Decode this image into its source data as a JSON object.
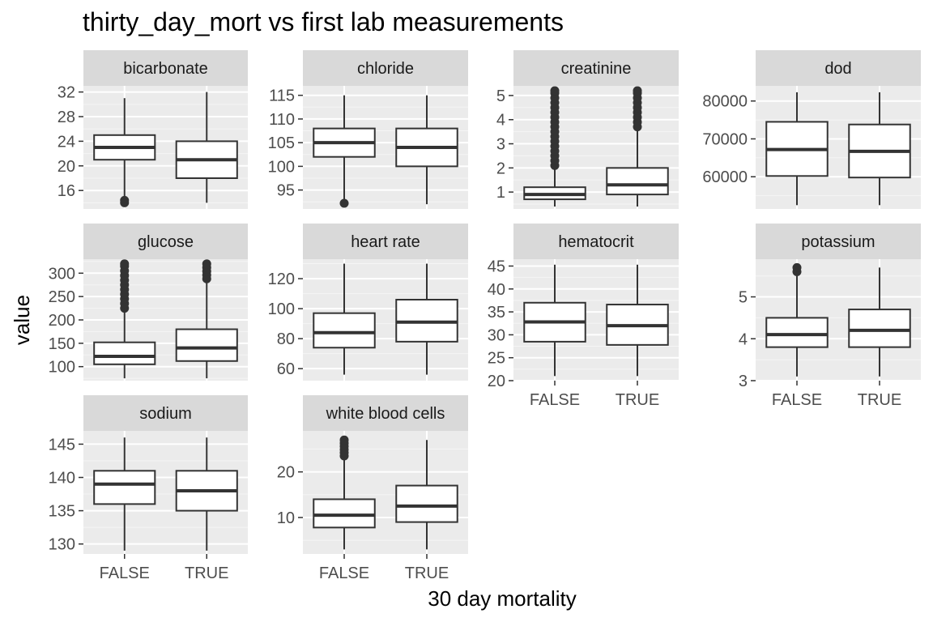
{
  "chart_data": {
    "type": "box",
    "title": "thirty_day_mort vs first lab measurements",
    "xlabel": "30 day mortality",
    "ylabel": "value",
    "categories": [
      "FALSE",
      "TRUE"
    ],
    "facets": [
      {
        "name": "bicarbonate",
        "ylim": [
          13,
          33
        ],
        "yticks": [
          16,
          20,
          24,
          28,
          32
        ],
        "boxes": [
          {
            "group": "FALSE",
            "min": 15,
            "q1": 21,
            "median": 23,
            "q3": 25,
            "max": 31,
            "outliers": [
              14,
              14.4
            ]
          },
          {
            "group": "TRUE",
            "min": 14,
            "q1": 18,
            "median": 21,
            "q3": 24,
            "max": 32,
            "outliers": []
          }
        ]
      },
      {
        "name": "chloride",
        "ylim": [
          91,
          117
        ],
        "yticks": [
          95,
          100,
          105,
          110,
          115
        ],
        "boxes": [
          {
            "group": "FALSE",
            "min": 93,
            "q1": 102,
            "median": 105,
            "q3": 108,
            "max": 115,
            "outliers": [
              92.2
            ]
          },
          {
            "group": "TRUE",
            "min": 92,
            "q1": 100,
            "median": 104,
            "q3": 108,
            "max": 115,
            "outliers": []
          }
        ]
      },
      {
        "name": "creatinine",
        "ylim": [
          0.3,
          5.4
        ],
        "yticks": [
          1,
          2,
          3,
          4,
          5
        ],
        "boxes": [
          {
            "group": "FALSE",
            "min": 0.4,
            "q1": 0.7,
            "median": 0.9,
            "q3": 1.2,
            "max": 2.0,
            "outliers": [
              2.1,
              2.3,
              2.5,
              2.7,
              2.9,
              3.1,
              3.3,
              3.5,
              3.7,
              3.9,
              4.1,
              4.3,
              4.5,
              4.7,
              4.9,
              5.1,
              5.2
            ]
          },
          {
            "group": "TRUE",
            "min": 0.4,
            "q1": 0.9,
            "median": 1.3,
            "q3": 2.0,
            "max": 3.6,
            "outliers": [
              3.7,
              3.9,
              4.1,
              4.3,
              4.5,
              4.7,
              4.9,
              5.1,
              5.2
            ]
          }
        ]
      },
      {
        "name": "dod",
        "ylim": [
          51500,
          84000
        ],
        "yticks": [
          60000,
          70000,
          80000
        ],
        "boxes": [
          {
            "group": "FALSE",
            "min": 52500,
            "q1": 60200,
            "median": 67200,
            "q3": 74500,
            "max": 82300,
            "outliers": []
          },
          {
            "group": "TRUE",
            "min": 52500,
            "q1": 59800,
            "median": 66700,
            "q3": 73800,
            "max": 82300,
            "outliers": []
          }
        ]
      },
      {
        "name": "glucose",
        "ylim": [
          70,
          330
        ],
        "yticks": [
          100,
          150,
          200,
          250,
          300
        ],
        "boxes": [
          {
            "group": "FALSE",
            "min": 75,
            "q1": 105,
            "median": 122,
            "q3": 152,
            "max": 220,
            "outliers": [
              225,
              235,
              245,
              255,
              265,
              275,
              285,
              295,
              305,
              315,
              320
            ]
          },
          {
            "group": "TRUE",
            "min": 75,
            "q1": 112,
            "median": 140,
            "q3": 180,
            "max": 283,
            "outliers": [
              288,
              296,
              304,
              312,
              320
            ]
          }
        ]
      },
      {
        "name": "heart rate",
        "ylim": [
          52,
          133
        ],
        "yticks": [
          60,
          80,
          100,
          120
        ],
        "boxes": [
          {
            "group": "FALSE",
            "min": 56,
            "q1": 74,
            "median": 84,
            "q3": 97,
            "max": 130,
            "outliers": []
          },
          {
            "group": "TRUE",
            "min": 56,
            "q1": 78,
            "median": 91,
            "q3": 106,
            "max": 130,
            "outliers": []
          }
        ]
      },
      {
        "name": "hematocrit",
        "ylim": [
          20,
          46.5
        ],
        "yticks": [
          20,
          25,
          30,
          35,
          40,
          45
        ],
        "boxes": [
          {
            "group": "FALSE",
            "min": 21,
            "q1": 28.5,
            "median": 32.8,
            "q3": 37,
            "max": 45.3,
            "outliers": []
          },
          {
            "group": "TRUE",
            "min": 21,
            "q1": 27.8,
            "median": 32,
            "q3": 36.6,
            "max": 45.3,
            "outliers": []
          }
        ]
      },
      {
        "name": "potassium",
        "ylim": [
          3,
          5.9
        ],
        "yticks": [
          3,
          4,
          5
        ],
        "boxes": [
          {
            "group": "FALSE",
            "min": 3.1,
            "q1": 3.8,
            "median": 4.1,
            "q3": 4.5,
            "max": 5.5,
            "outliers": [
              5.6,
              5.7
            ]
          },
          {
            "group": "TRUE",
            "min": 3.1,
            "q1": 3.8,
            "median": 4.2,
            "q3": 4.7,
            "max": 5.7,
            "outliers": []
          }
        ]
      },
      {
        "name": "sodium",
        "ylim": [
          128.5,
          147
        ],
        "yticks": [
          130,
          135,
          140,
          145
        ],
        "boxes": [
          {
            "group": "FALSE",
            "min": 129,
            "q1": 136,
            "median": 139,
            "q3": 141,
            "max": 146,
            "outliers": []
          },
          {
            "group": "TRUE",
            "min": 129,
            "q1": 135,
            "median": 138,
            "q3": 141,
            "max": 146,
            "outliers": []
          }
        ]
      },
      {
        "name": "white blood cells",
        "ylim": [
          2,
          29
        ],
        "yticks": [
          10,
          20
        ],
        "boxes": [
          {
            "group": "FALSE",
            "min": 3,
            "q1": 7.8,
            "median": 10.5,
            "q3": 14,
            "max": 23,
            "outliers": [
              23.5,
              24.2,
              24.9,
              25.6,
              26.3,
              27
            ]
          },
          {
            "group": "TRUE",
            "min": 3,
            "q1": 9,
            "median": 12.5,
            "q3": 17,
            "max": 27,
            "outliers": []
          }
        ]
      }
    ]
  }
}
